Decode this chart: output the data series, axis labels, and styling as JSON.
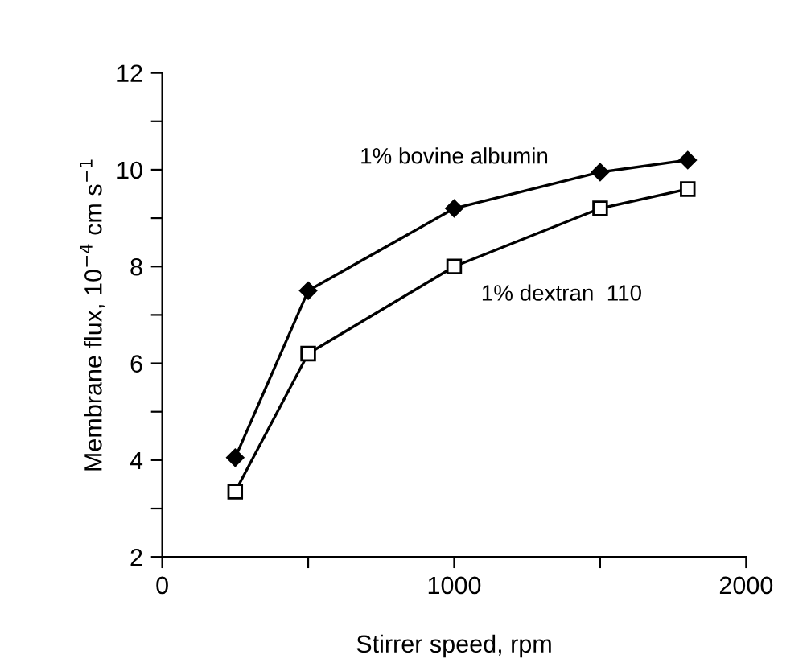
{
  "chart_data": {
    "type": "line",
    "xlabel": "Stirrer speed, rpm",
    "ylabel": "Membrane flux, 10$^{−4}$ cm s$^{−1}$",
    "x": [
      250,
      500,
      1000,
      1500,
      1800
    ],
    "series": [
      {
        "name": "1% bovine albumin",
        "color": "#000000",
        "marker": "diamond",
        "values": [
          4.05,
          7.5,
          9.2,
          9.95,
          10.2
        ]
      },
      {
        "name": "1% dextran  110",
        "color": "#000000",
        "marker": "square",
        "values": [
          3.35,
          6.2,
          8.0,
          9.2,
          9.6
        ]
      }
    ],
    "xlim": [
      0,
      2000
    ],
    "xticks": [
      0,
      {
        "value": 500,
        "label": null
      },
      1000,
      {
        "value": 1500,
        "label": null
      },
      2000
    ],
    "ylim": [
      2,
      12
    ],
    "yticks": [
      2,
      {
        "value": 3,
        "label": null
      },
      4,
      {
        "value": 5,
        "label": null
      },
      6,
      {
        "value": 7,
        "label": null
      },
      8,
      {
        "value": 9,
        "label": null
      },
      10,
      {
        "value": 11,
        "label": null
      },
      12
    ],
    "grid": false,
    "legend": false,
    "line_style": "solid"
  }
}
